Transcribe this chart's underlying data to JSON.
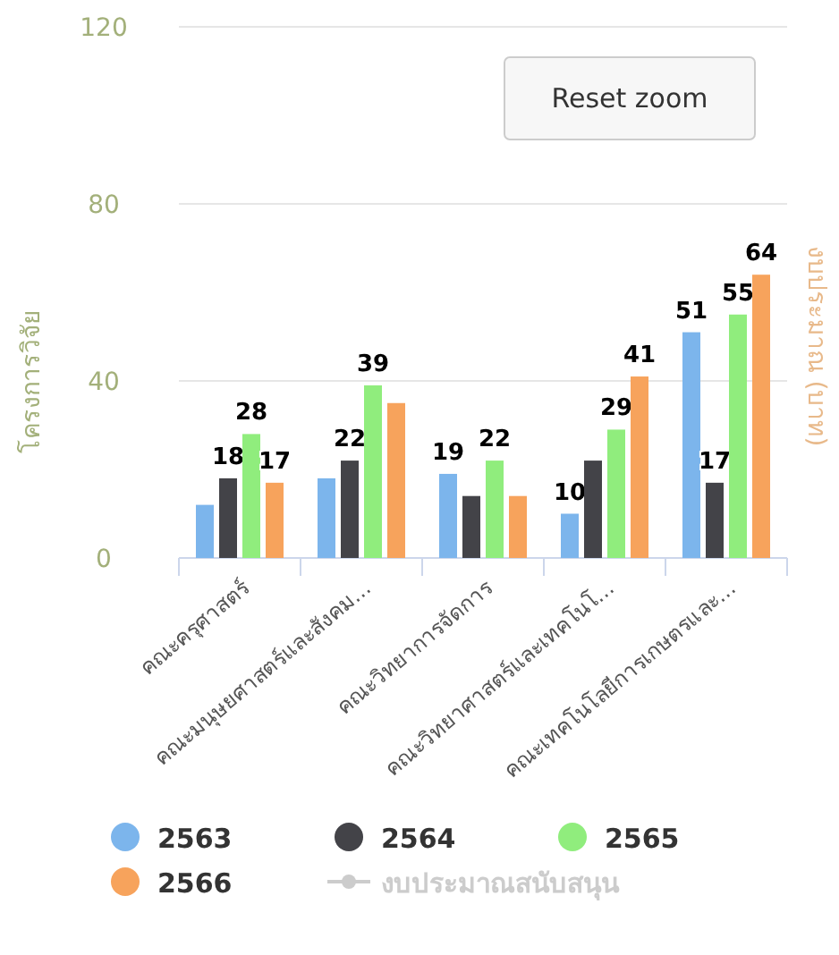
{
  "chart_data": {
    "type": "bar",
    "categories": [
      "คณะครุศาสตร์",
      "คณะมนุษยศาสตร์และสังคม...",
      "คณะวิทยาการจัดการ",
      "คณะวิทยาศาสตร์และเทคโนโ...",
      "คณะเทคโนโลยีการเกษตรและ..."
    ],
    "series": [
      {
        "name": "2563",
        "color": "#7cb5ec",
        "values": [
          12,
          18,
          19,
          10,
          51
        ],
        "value_labels": [
          null,
          null,
          "19",
          "10",
          "51"
        ]
      },
      {
        "name": "2564",
        "color": "#434348",
        "values": [
          18,
          22,
          14,
          22,
          17
        ],
        "value_labels": [
          "18",
          "22",
          null,
          null,
          "17"
        ]
      },
      {
        "name": "2565",
        "color": "#90ed7d",
        "values": [
          28,
          39,
          22,
          29,
          55
        ],
        "value_labels": [
          "28",
          "39",
          "22",
          "29",
          "55"
        ]
      },
      {
        "name": "2566",
        "color": "#f7a35c",
        "values": [
          17,
          35,
          14,
          41,
          64
        ],
        "value_labels": [
          "17",
          null,
          null,
          "41",
          "64"
        ]
      },
      {
        "name": "งบประมาณสนับสนุน",
        "type": "line",
        "marker": "circle",
        "color": "#cccccc",
        "values": [
          null,
          null,
          null,
          null,
          null
        ]
      }
    ],
    "ylim": [
      0,
      120
    ],
    "yticks": [
      0,
      40,
      80,
      120
    ],
    "ylabel": "โครงการวิจัย",
    "y2label": "งบประมาณ (บาท)",
    "grid": "y",
    "legend": "bottom",
    "annotations": [
      "Reset zoom"
    ]
  }
}
